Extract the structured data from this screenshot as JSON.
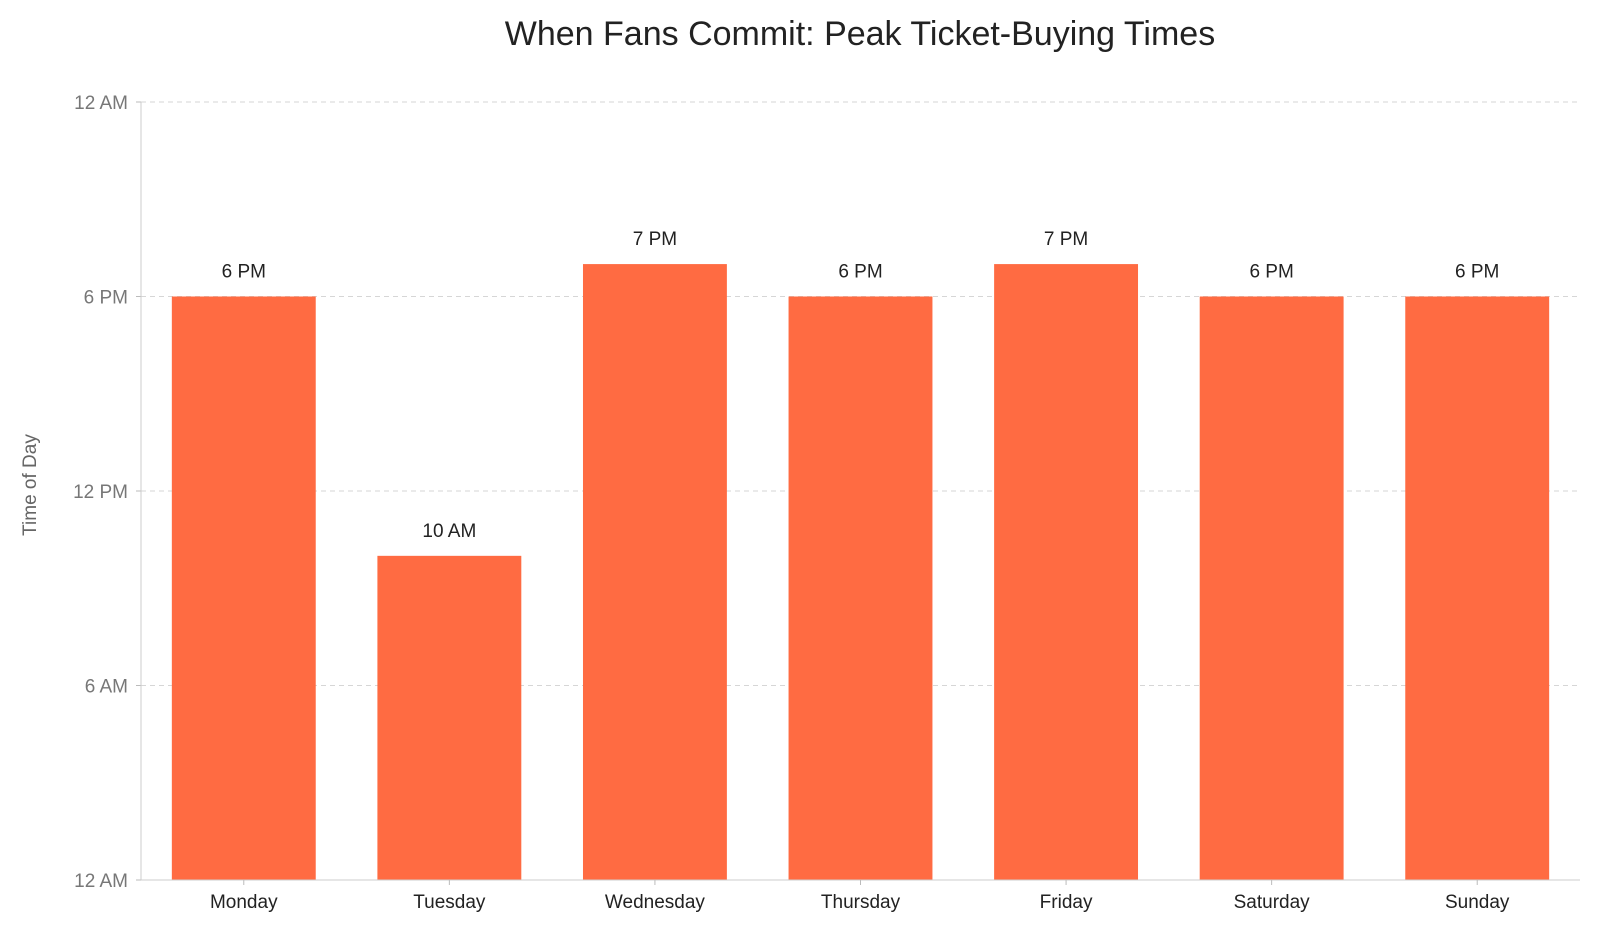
{
  "chart_data": {
    "type": "bar",
    "title": "When Fans Commit: Peak Ticket-Buying Times",
    "xlabel": "",
    "ylabel": "Time of Day",
    "categories": [
      "Monday",
      "Tuesday",
      "Wednesday",
      "Thursday",
      "Friday",
      "Saturday",
      "Sunday"
    ],
    "values": [
      18,
      10,
      19,
      18,
      19,
      18,
      18
    ],
    "value_labels": [
      "6 PM",
      "10 AM",
      "7 PM",
      "6 PM",
      "7 PM",
      "6 PM",
      "6 PM"
    ],
    "value_unit": "hour of day (0-24)",
    "ylim": [
      0,
      24
    ],
    "yticks": [
      0,
      6,
      12,
      18,
      24
    ],
    "ytick_labels": [
      "12 AM",
      "6 AM",
      "12 PM",
      "6 PM",
      "12 AM"
    ],
    "grid": true,
    "legend": "none",
    "colors": {
      "bar": "#ff6b42",
      "grid": "#d6d6d6",
      "axis": "#cccccc"
    }
  }
}
